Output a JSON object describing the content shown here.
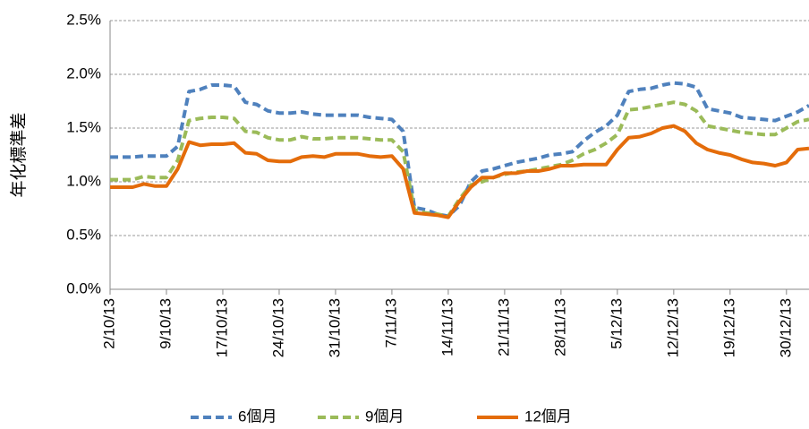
{
  "chart_data": {
    "type": "line",
    "y_label": "年化標準差",
    "categories": [
      "2/10/13",
      null,
      null,
      null,
      null,
      "9/10/13",
      null,
      null,
      null,
      null,
      "17/10/13",
      null,
      null,
      null,
      null,
      "24/10/13",
      null,
      null,
      null,
      null,
      "31/10/13",
      null,
      null,
      null,
      null,
      "7/11/13",
      null,
      null,
      null,
      null,
      "14/11/13",
      null,
      null,
      null,
      null,
      "21/11/13",
      null,
      null,
      null,
      null,
      "28/11/13",
      null,
      null,
      null,
      null,
      "5/12/13",
      null,
      null,
      null,
      null,
      "12/12/13",
      null,
      null,
      null,
      null,
      "19/12/13",
      null,
      null,
      null,
      null,
      "30/12/13",
      null,
      null
    ],
    "series": [
      {
        "name": "6個月",
        "color": "#4f81bd",
        "dashed": true,
        "values": [
          1.23,
          1.23,
          1.23,
          1.24,
          1.24,
          1.24,
          1.33,
          1.84,
          1.86,
          1.9,
          1.9,
          1.89,
          1.74,
          1.72,
          1.66,
          1.64,
          1.64,
          1.65,
          1.63,
          1.62,
          1.62,
          1.62,
          1.62,
          1.6,
          1.59,
          1.58,
          1.47,
          0.76,
          0.74,
          0.7,
          0.68,
          0.78,
          1.0,
          1.1,
          1.12,
          1.15,
          1.18,
          1.2,
          1.22,
          1.25,
          1.26,
          1.28,
          1.38,
          1.46,
          1.52,
          1.62,
          1.84,
          1.86,
          1.87,
          1.9,
          1.92,
          1.91,
          1.88,
          1.68,
          1.66,
          1.64,
          1.6,
          1.59,
          1.58,
          1.57,
          1.61,
          1.65,
          1.71
        ]
      },
      {
        "name": "9個月",
        "color": "#9bbb59",
        "dashed": true,
        "values": [
          1.02,
          1.02,
          1.02,
          1.05,
          1.04,
          1.04,
          1.2,
          1.57,
          1.59,
          1.6,
          1.6,
          1.59,
          1.47,
          1.46,
          1.41,
          1.39,
          1.39,
          1.42,
          1.4,
          1.4,
          1.41,
          1.41,
          1.41,
          1.4,
          1.39,
          1.39,
          1.28,
          0.74,
          0.71,
          0.7,
          0.68,
          0.84,
          0.97,
          1.0,
          1.04,
          1.07,
          1.09,
          1.1,
          1.12,
          1.14,
          1.16,
          1.2,
          1.26,
          1.3,
          1.36,
          1.44,
          1.67,
          1.68,
          1.7,
          1.72,
          1.74,
          1.72,
          1.66,
          1.52,
          1.5,
          1.48,
          1.46,
          1.45,
          1.44,
          1.44,
          1.5,
          1.56,
          1.58
        ]
      },
      {
        "name": "12個月",
        "color": "#e46c0a",
        "dashed": false,
        "values": [
          0.95,
          0.95,
          0.95,
          0.98,
          0.96,
          0.96,
          1.12,
          1.37,
          1.34,
          1.35,
          1.35,
          1.36,
          1.27,
          1.26,
          1.2,
          1.19,
          1.19,
          1.23,
          1.24,
          1.23,
          1.26,
          1.26,
          1.26,
          1.24,
          1.23,
          1.24,
          1.12,
          0.71,
          0.7,
          0.69,
          0.67,
          0.82,
          0.95,
          1.04,
          1.04,
          1.08,
          1.08,
          1.1,
          1.1,
          1.12,
          1.15,
          1.15,
          1.16,
          1.16,
          1.16,
          1.3,
          1.41,
          1.42,
          1.45,
          1.5,
          1.52,
          1.47,
          1.36,
          1.3,
          1.27,
          1.25,
          1.21,
          1.18,
          1.17,
          1.15,
          1.18,
          1.3,
          1.31
        ]
      }
    ],
    "ylim": [
      0,
      2.5
    ],
    "yticks": [
      {
        "value": 0,
        "label": "0.0%"
      },
      {
        "value": 0.5,
        "label": "0.5%"
      },
      {
        "value": 1,
        "label": "1.0%"
      },
      {
        "value": 1.5,
        "label": "1.5%"
      },
      {
        "value": 2,
        "label": "2.0%"
      },
      {
        "value": 2.5,
        "label": "2.5%"
      }
    ],
    "grid": true,
    "legend": "bottom"
  }
}
